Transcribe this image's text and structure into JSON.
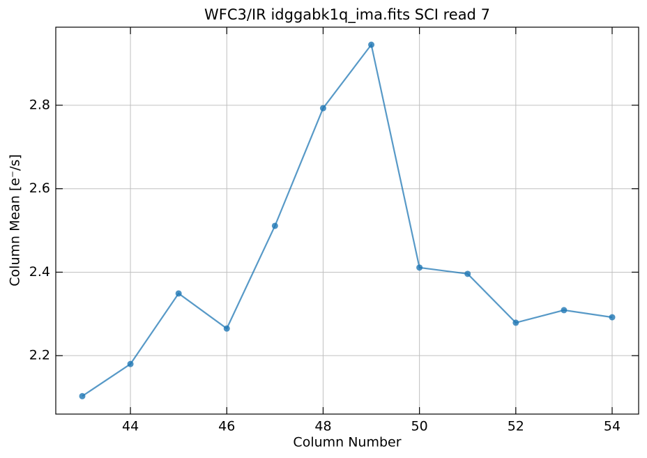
{
  "chart_data": {
    "type": "line",
    "title": "WFC3/IR idggabk1q_ima.fits SCI read 7",
    "x_label": "Column Number",
    "y_label": "Column Mean [e⁻/s]",
    "x": [
      43,
      44,
      45,
      46,
      47,
      48,
      49,
      50,
      51,
      52,
      53,
      54
    ],
    "series": [
      {
        "name": "Column Mean",
        "color": "#1f77b4",
        "values": [
          2.103,
          2.18,
          2.349,
          2.265,
          2.511,
          2.793,
          2.945,
          2.411,
          2.396,
          2.279,
          2.309,
          2.292
        ]
      }
    ],
    "xlim": [
      42.45,
      54.55
    ],
    "xticks": [
      44,
      46,
      48,
      50,
      52,
      54
    ],
    "ylim": [
      2.06,
      2.987
    ],
    "yticks": [
      2.2,
      2.4,
      2.6,
      2.8
    ],
    "grid": true
  }
}
